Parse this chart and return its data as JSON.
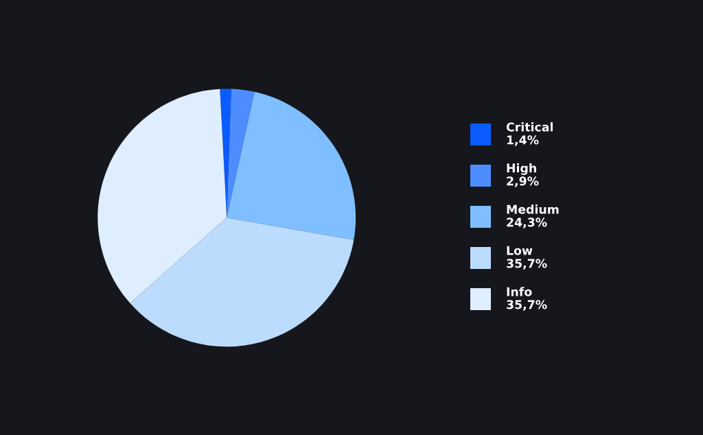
{
  "chart_data": {
    "type": "pie",
    "categories": [
      "Critical",
      "High",
      "Medium",
      "Low",
      "Info"
    ],
    "values": [
      1.4,
      2.9,
      24.3,
      35.7,
      35.7
    ],
    "value_labels": [
      "1,4%",
      "2,9%",
      "24,3%",
      "35,7%",
      "35,7%"
    ],
    "colors": [
      "#0a5cff",
      "#4d8dff",
      "#80bfff",
      "#bcdcfe",
      "#deeeff"
    ],
    "legend": "right"
  }
}
